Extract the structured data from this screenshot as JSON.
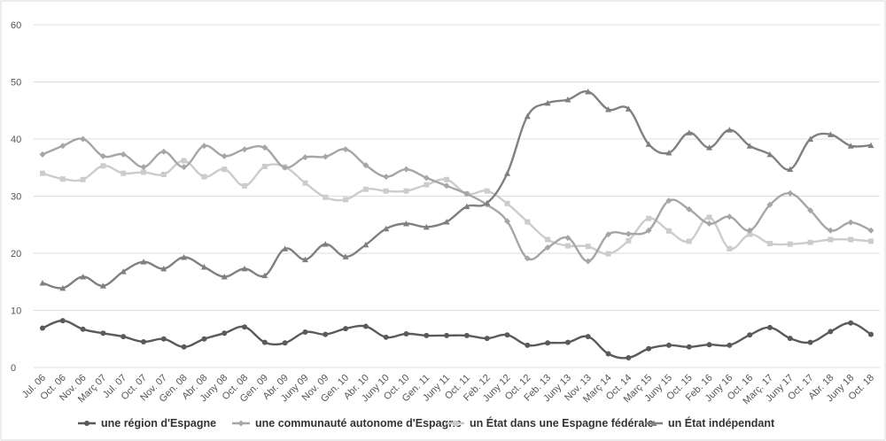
{
  "chart_data": {
    "type": "line",
    "title": "",
    "xlabel": "",
    "ylabel": "",
    "ylim": [
      0,
      60
    ],
    "yticks": [
      0,
      10,
      20,
      30,
      40,
      50,
      60
    ],
    "grid": true,
    "legend_position": "bottom",
    "categories": [
      "Jul. 06",
      "Oct. 06",
      "Nov. 06",
      "Març 07",
      "Jul. 07",
      "Oct. 07",
      "Nov. 07",
      "Gen. 08",
      "Abr. 08",
      "Juny 08",
      "Oct. 08",
      "Gen. 09",
      "Abr. 09",
      "Juny 09",
      "Nov. 09",
      "Gen. 10",
      "Abr. 10",
      "Juny 10",
      "Oct. 10",
      "Gen. 11",
      "Juny 11",
      "Oct. 11",
      "Feb. 12",
      "Juny 12",
      "Oct. 12",
      "Feb. 13",
      "Juny 13",
      "Nov. 13",
      "Març 14",
      "Oct. 14",
      "Març 15",
      "Juny 15",
      "Oct. 15",
      "Feb. 16",
      "Juny 16",
      "Oct. 16",
      "Març. 17",
      "Juny 17",
      "Oct. 17",
      "Abr. 18",
      "Juny 18",
      "Oct. 18"
    ],
    "series": [
      {
        "name": "une région d'Espagne",
        "color": "#5a5a5a",
        "marker": "circle",
        "values": [
          6.9,
          8.2,
          6.7,
          6.0,
          5.4,
          4.5,
          5.0,
          3.6,
          5.0,
          6.0,
          7.1,
          4.4,
          4.3,
          6.2,
          5.8,
          6.8,
          7.2,
          5.3,
          5.9,
          5.6,
          5.6,
          5.6,
          5.1,
          5.7,
          3.9,
          4.3,
          4.4,
          5.4,
          2.4,
          1.7,
          3.3,
          3.9,
          3.6,
          4.0,
          3.9,
          5.7,
          7.0,
          5.1,
          4.4,
          6.3,
          7.8,
          5.8
        ]
      },
      {
        "name": "une communauté autonome d'Espagne",
        "color": "#a6a6a6",
        "marker": "diamond",
        "values": [
          37.3,
          38.8,
          40.0,
          37.0,
          37.3,
          35.1,
          37.8,
          35.1,
          38.8,
          37.0,
          38.2,
          38.5,
          35.0,
          36.8,
          36.9,
          38.2,
          35.4,
          33.4,
          34.7,
          33.2,
          31.8,
          30.4,
          28.5,
          25.6,
          19.1,
          21.0,
          22.7,
          18.6,
          23.3,
          23.4,
          24.0,
          29.2,
          27.7,
          25.2,
          26.4,
          24.0,
          28.5,
          30.5,
          27.5,
          24.0,
          25.4,
          24.0
        ]
      },
      {
        "name": "un État dans une Espagne fédérale",
        "color": "#cccccc",
        "marker": "square",
        "values": [
          34.0,
          33.0,
          32.9,
          35.3,
          34.0,
          34.2,
          33.8,
          36.2,
          33.4,
          34.7,
          31.8,
          35.2,
          35.1,
          32.3,
          29.8,
          29.4,
          31.2,
          30.9,
          30.9,
          32.0,
          32.9,
          30.4,
          30.9,
          28.7,
          25.5,
          22.4,
          21.3,
          21.2,
          19.9,
          22.2,
          26.1,
          23.9,
          22.1,
          26.3,
          20.8,
          23.3,
          21.7,
          21.6,
          21.9,
          22.4,
          22.4,
          22.1
        ]
      },
      {
        "name": "un État indépendant",
        "color": "#808080",
        "marker": "triangle",
        "values": [
          14.8,
          13.9,
          15.9,
          14.3,
          16.8,
          18.5,
          17.3,
          19.3,
          17.6,
          15.9,
          17.3,
          16.1,
          20.8,
          18.9,
          21.6,
          19.4,
          21.5,
          24.3,
          25.2,
          24.6,
          25.5,
          28.2,
          28.8,
          34.0,
          44.0,
          46.3,
          46.9,
          48.3,
          45.2,
          45.3,
          39.1,
          37.6,
          41.1,
          38.5,
          41.6,
          38.8,
          37.3,
          34.7,
          40.0,
          40.8,
          38.8,
          38.9
        ]
      }
    ]
  }
}
